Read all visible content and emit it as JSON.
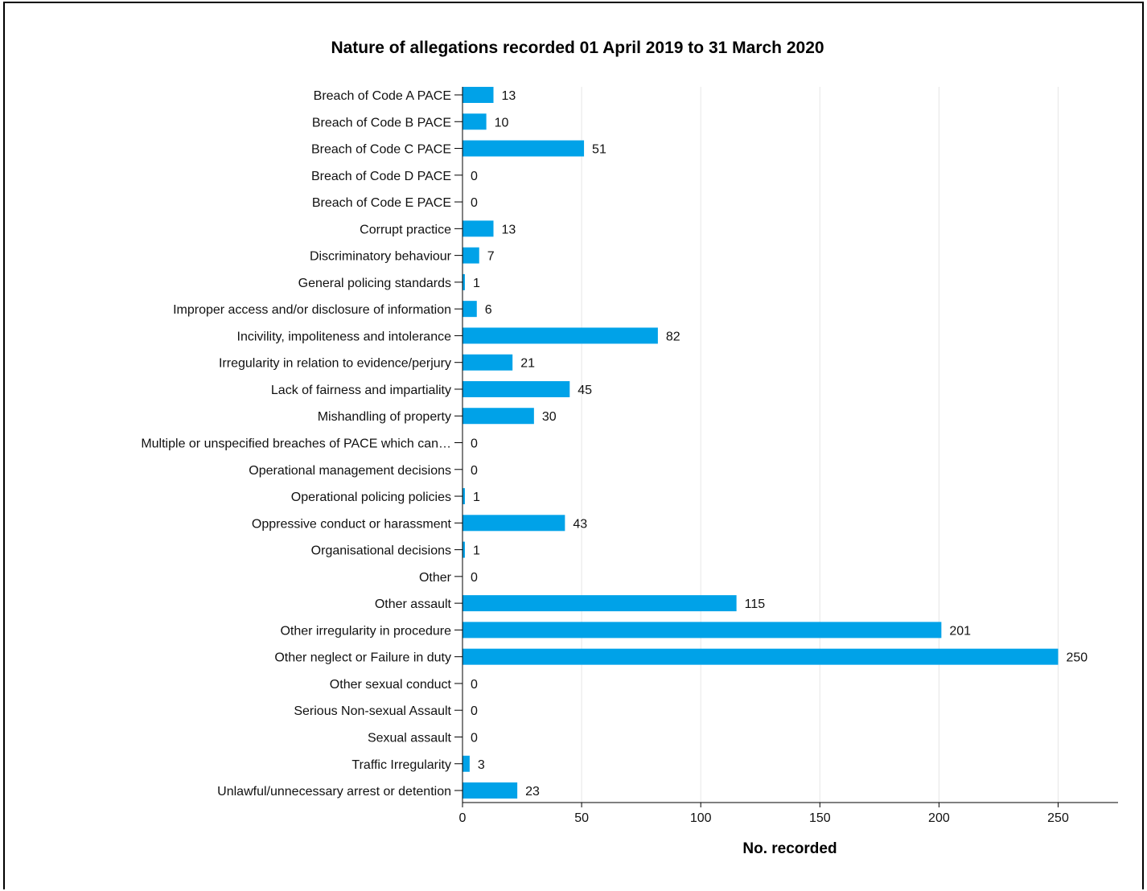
{
  "chart_data": {
    "type": "bar",
    "orientation": "horizontal",
    "title": "Nature of allegations recorded 01 April 2019 to 31 March 2020",
    "xlabel": "No. recorded",
    "ylabel": "",
    "xlim": [
      0,
      275
    ],
    "x_ticks": [
      0,
      50,
      100,
      150,
      200,
      250
    ],
    "grid": true,
    "bar_color": "#00a2e8",
    "categories": [
      "Breach of Code A PACE",
      "Breach of Code B PACE",
      "Breach of Code C PACE",
      "Breach of Code D PACE",
      "Breach of Code E PACE",
      "Corrupt practice",
      "Discriminatory behaviour",
      "General policing standards",
      "Improper access and/or disclosure of information",
      "Incivility, impoliteness and intolerance",
      "Irregularity in relation to evidence/perjury",
      "Lack of fairness and impartiality",
      "Mishandling of property",
      "Multiple or unspecified breaches of PACE which can…",
      "Operational management decisions",
      "Operational policing policies",
      "Oppressive conduct or harassment",
      "Organisational decisions",
      "Other",
      "Other assault",
      "Other irregularity in procedure",
      "Other neglect or Failure in duty",
      "Other sexual conduct",
      "Serious Non-sexual Assault",
      "Sexual assault",
      "Traffic Irregularity",
      "Unlawful/unnecessary arrest or detention"
    ],
    "values": [
      13,
      10,
      51,
      0,
      0,
      13,
      7,
      1,
      6,
      82,
      21,
      45,
      30,
      0,
      0,
      1,
      43,
      1,
      0,
      115,
      201,
      250,
      0,
      0,
      0,
      3,
      23
    ]
  }
}
